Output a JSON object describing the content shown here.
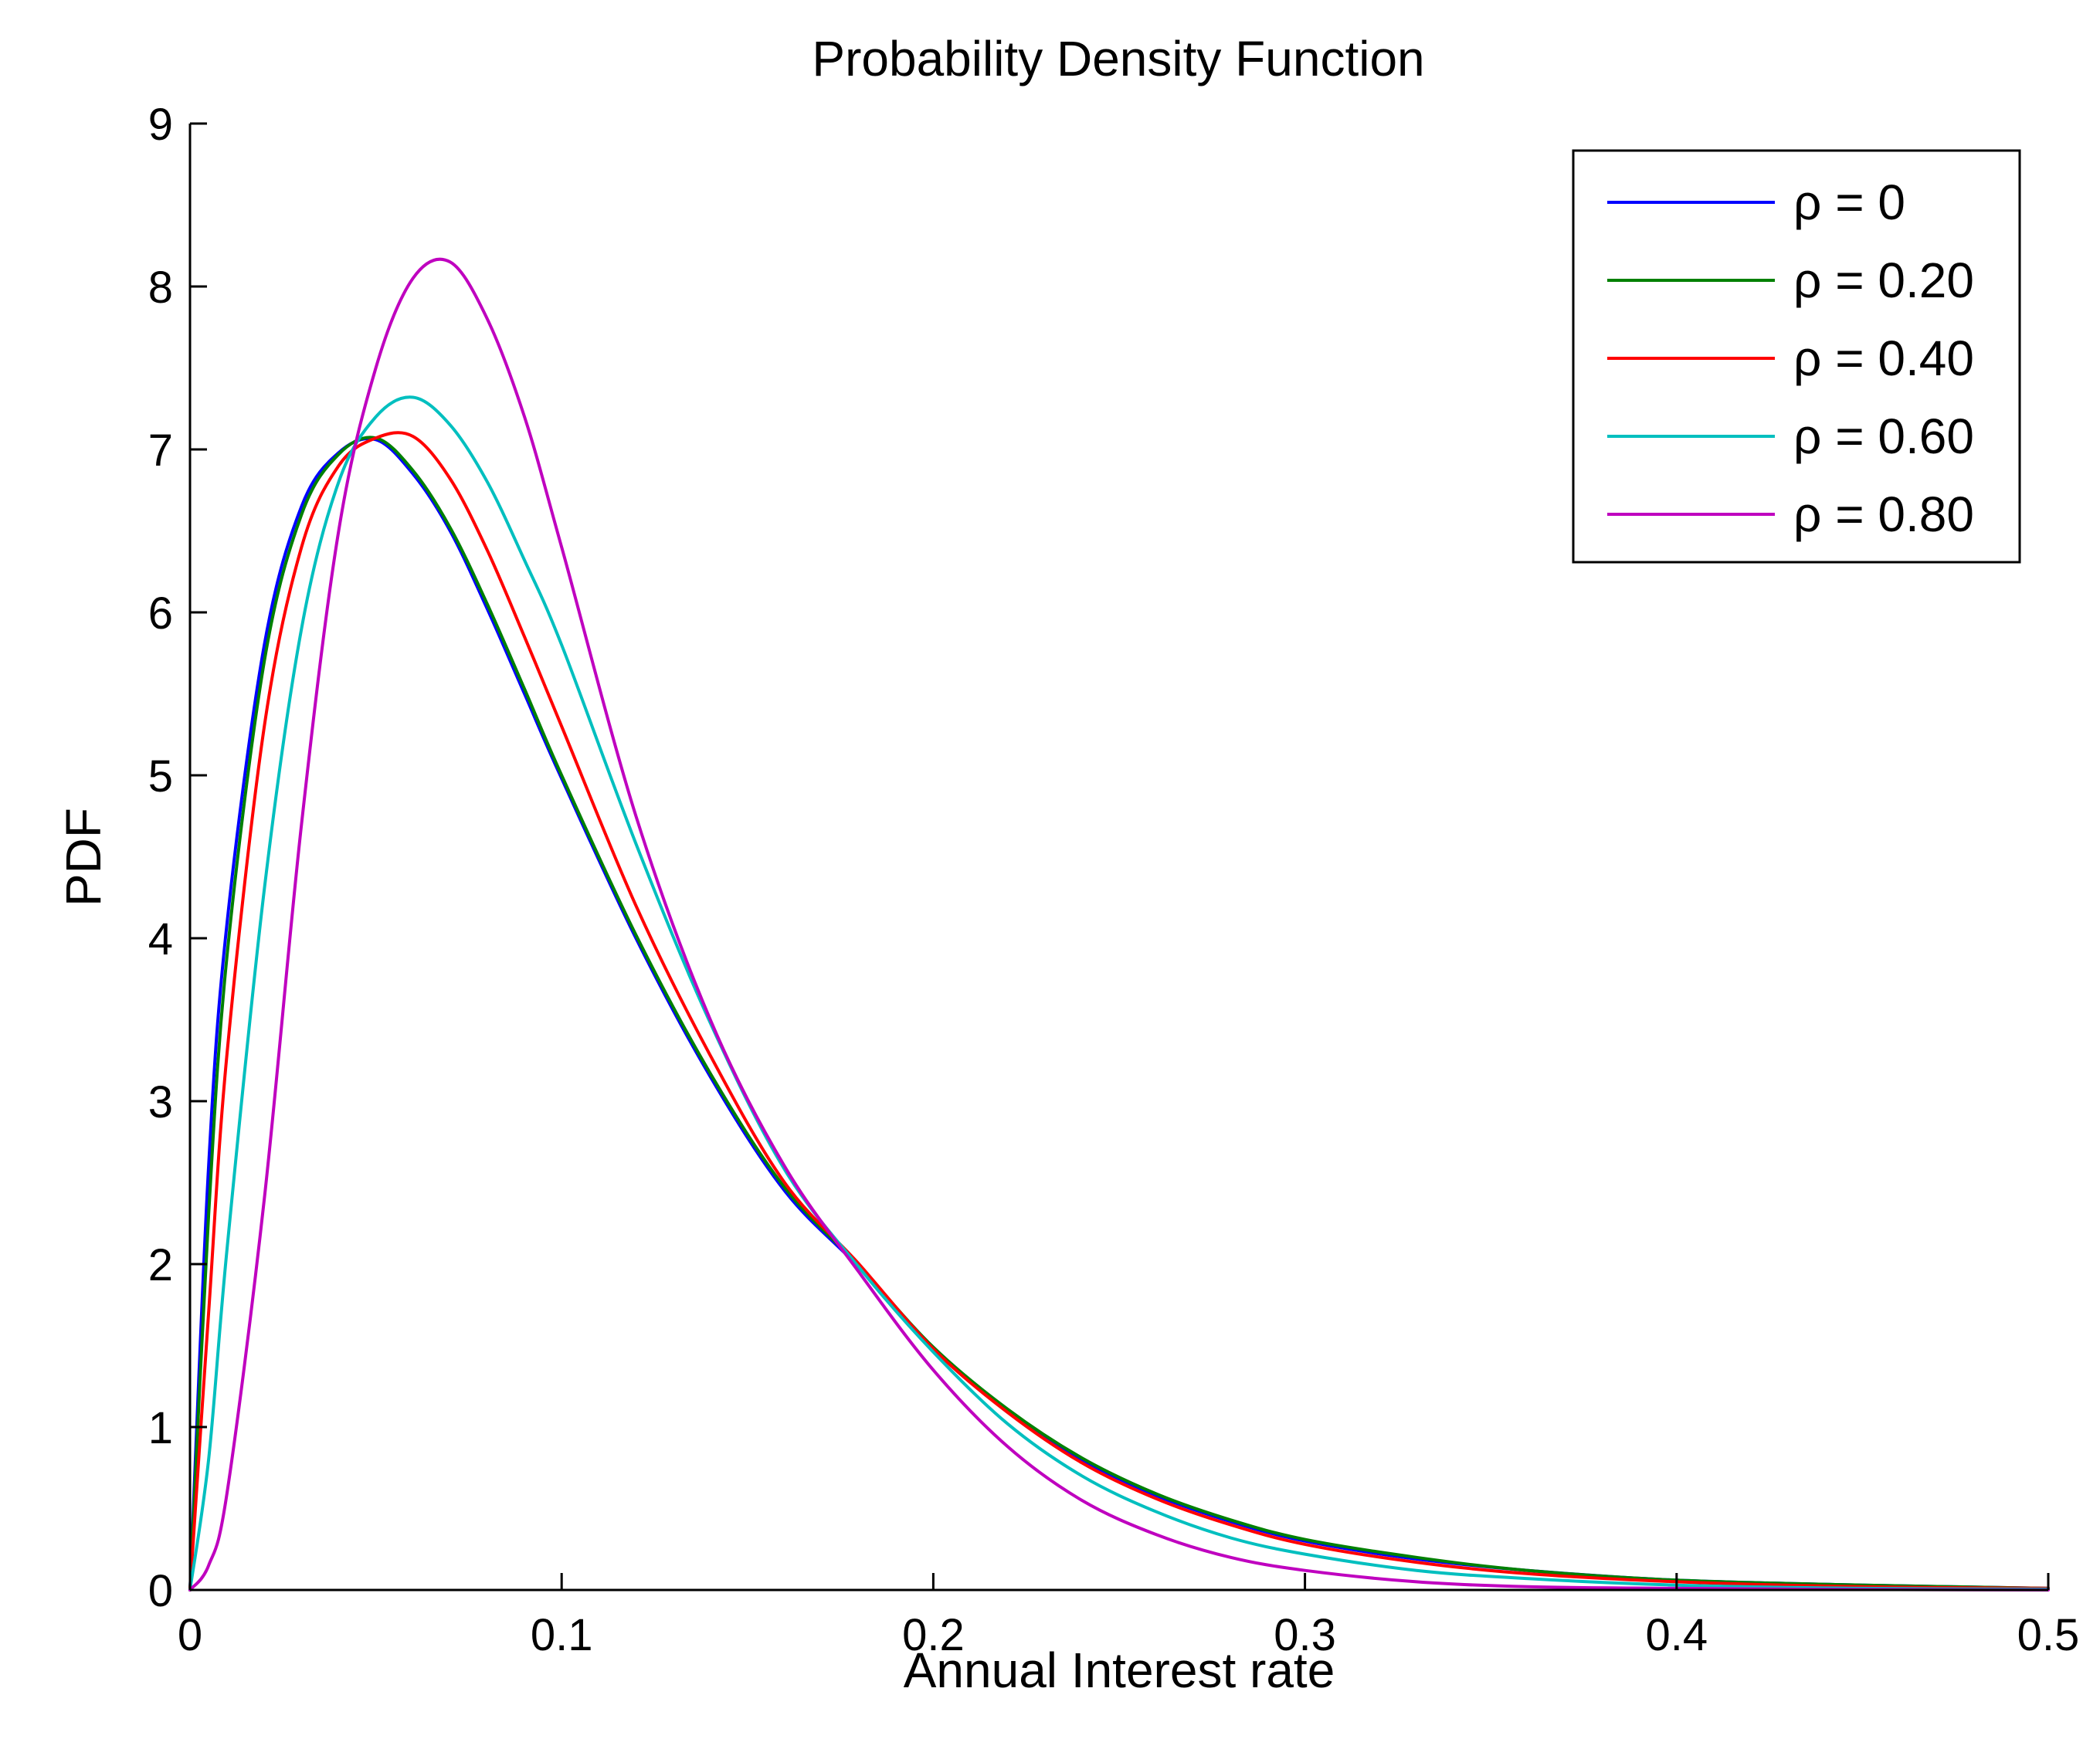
{
  "chart_data": {
    "type": "line",
    "title": "Probability Density Function",
    "xlabel": "Annual Interest rate",
    "ylabel": "PDF",
    "xlim": [
      0,
      0.5
    ],
    "ylim": [
      0,
      9
    ],
    "grid": false,
    "legend_position": "top-right",
    "x_ticks": [
      "0",
      "0.1",
      "0.2",
      "0.3",
      "0.4",
      "0.5"
    ],
    "y_ticks": [
      "0",
      "1",
      "2",
      "3",
      "4",
      "5",
      "6",
      "7",
      "8",
      "9"
    ],
    "x": [
      0,
      0.005,
      0.01,
      0.02,
      0.03,
      0.04,
      0.05,
      0.06,
      0.07,
      0.08,
      0.09,
      0.1,
      0.12,
      0.14,
      0.16,
      0.18,
      0.2,
      0.22,
      0.24,
      0.26,
      0.28,
      0.3,
      0.33,
      0.36,
      0.4,
      0.45,
      0.5
    ],
    "series": [
      {
        "name": "ρ = 0",
        "color": "#0000ff",
        "values": [
          0,
          2.6,
          4.1,
          5.8,
          6.65,
          6.98,
          7.06,
          6.85,
          6.5,
          6.02,
          5.5,
          4.98,
          4.0,
          3.15,
          2.45,
          1.98,
          1.48,
          1.1,
          0.8,
          0.58,
          0.42,
          0.3,
          0.19,
          0.12,
          0.06,
          0.03,
          0.01
        ]
      },
      {
        "name": "ρ = 0.20",
        "color": "#008000",
        "values": [
          0,
          2.3,
          3.9,
          5.7,
          6.6,
          6.97,
          7.07,
          6.87,
          6.52,
          6.05,
          5.53,
          5.0,
          4.02,
          3.17,
          2.47,
          1.99,
          1.49,
          1.11,
          0.81,
          0.59,
          0.43,
          0.31,
          0.2,
          0.12,
          0.06,
          0.03,
          0.01
        ]
      },
      {
        "name": "ρ = 0.40",
        "color": "#ff0000",
        "values": [
          0,
          1.7,
          3.3,
          5.3,
          6.4,
          6.9,
          7.07,
          7.08,
          6.82,
          6.38,
          5.85,
          5.3,
          4.2,
          3.28,
          2.5,
          2.0,
          1.48,
          1.09,
          0.78,
          0.56,
          0.4,
          0.28,
          0.17,
          0.1,
          0.05,
          0.02,
          0.01
        ]
      },
      {
        "name": "ρ = 0.60",
        "color": "#00bfbf",
        "values": [
          0,
          0.8,
          2.1,
          4.3,
          5.9,
          6.8,
          7.2,
          7.32,
          7.15,
          6.8,
          6.32,
          5.8,
          4.58,
          3.48,
          2.58,
          1.98,
          1.46,
          1.02,
          0.7,
          0.48,
          0.32,
          0.22,
          0.12,
          0.07,
          0.03,
          0.01,
          0.005
        ]
      },
      {
        "name": "ρ = 0.80",
        "color": "#bf00bf",
        "values": [
          0,
          0.15,
          0.6,
          2.4,
          4.7,
          6.5,
          7.5,
          8.05,
          8.15,
          7.8,
          7.2,
          6.4,
          4.75,
          3.5,
          2.6,
          1.95,
          1.35,
          0.88,
          0.55,
          0.34,
          0.2,
          0.12,
          0.05,
          0.02,
          0.01,
          0.003,
          0
        ]
      }
    ]
  }
}
